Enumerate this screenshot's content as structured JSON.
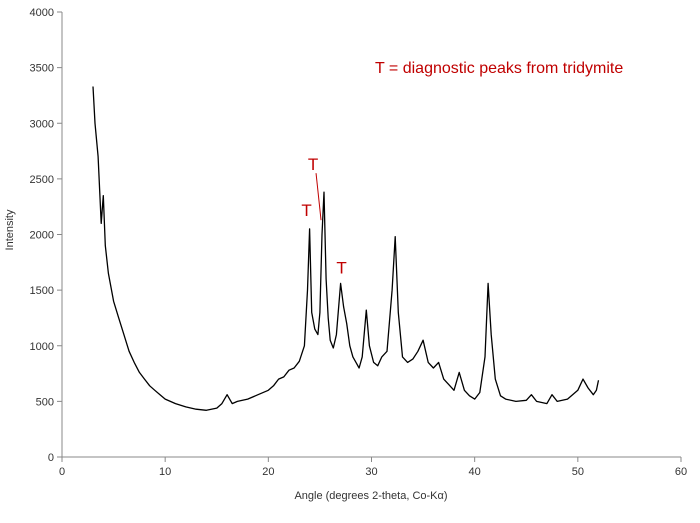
{
  "chart_data": {
    "type": "line",
    "title": "",
    "xlabel": "Angle (degrees 2-theta, Co-Kα)",
    "ylabel": "Intensity",
    "xlim": [
      0,
      60
    ],
    "ylim": [
      0,
      4000
    ],
    "x_ticks": [
      0,
      10,
      20,
      30,
      40,
      50,
      60
    ],
    "y_ticks": [
      0,
      500,
      1000,
      1500,
      2000,
      2500,
      3000,
      3500,
      4000
    ],
    "x_tick_labels": [
      "0",
      "10",
      "20",
      "30",
      "40",
      "50",
      "60"
    ],
    "y_tick_labels": [
      "0",
      "500",
      "1000",
      "1500",
      "2000",
      "2500",
      "3000",
      "3500",
      "4000"
    ],
    "grid": false,
    "line_color": "#000000",
    "annotation_color": "#c00000",
    "legend_note": "T = diagnostic peaks from tridymite",
    "peak_markers": [
      {
        "label": "T",
        "x": 24.0,
        "y": 2060
      },
      {
        "label": "T",
        "x": 25.4,
        "y": 2380
      },
      {
        "label": "T",
        "x": 27.0,
        "y": 1560
      }
    ],
    "series": [
      {
        "x": [
          3.0,
          3.2,
          3.5,
          3.8,
          4.0,
          4.2,
          4.5,
          5.0,
          5.5,
          6.0,
          6.5,
          7.0,
          7.5,
          8.0,
          8.5,
          9.0,
          9.5,
          10.0,
          11.0,
          12.0,
          13.0,
          14.0,
          15.0,
          15.5,
          16.0,
          16.5,
          17.0,
          18.0,
          19.0,
          20.0,
          20.5,
          21.0,
          21.5,
          22.0,
          22.5,
          23.0,
          23.5,
          23.8,
          24.0,
          24.2,
          24.5,
          24.8,
          25.0,
          25.2,
          25.4,
          25.6,
          25.8,
          26.0,
          26.3,
          26.6,
          27.0,
          27.3,
          27.6,
          27.9,
          28.2,
          28.5,
          28.8,
          29.1,
          29.5,
          29.8,
          30.2,
          30.6,
          31.0,
          31.5,
          32.0,
          32.3,
          32.6,
          33.0,
          33.5,
          34.0,
          34.5,
          35.0,
          35.5,
          36.0,
          36.5,
          37.0,
          37.5,
          38.0,
          38.5,
          39.0,
          39.5,
          40.0,
          40.5,
          41.0,
          41.3,
          41.6,
          42.0,
          42.5,
          43.0,
          44.0,
          45.0,
          45.5,
          46.0,
          47.0,
          47.5,
          48.0,
          49.0,
          50.0,
          50.5,
          51.0,
          51.5,
          51.8,
          52.0
        ],
        "y": [
          3330,
          3000,
          2700,
          2100,
          2350,
          1900,
          1650,
          1400,
          1250,
          1100,
          950,
          850,
          760,
          700,
          640,
          600,
          560,
          520,
          480,
          450,
          430,
          420,
          440,
          480,
          560,
          480,
          500,
          520,
          560,
          600,
          640,
          700,
          720,
          780,
          800,
          860,
          1000,
          1500,
          2050,
          1300,
          1150,
          1100,
          1300,
          2000,
          2380,
          1600,
          1250,
          1050,
          980,
          1100,
          1560,
          1350,
          1200,
          1000,
          900,
          850,
          800,
          900,
          1320,
          1000,
          850,
          820,
          900,
          950,
          1500,
          1980,
          1300,
          900,
          850,
          880,
          950,
          1050,
          850,
          800,
          850,
          700,
          650,
          600,
          760,
          600,
          550,
          520,
          580,
          900,
          1560,
          1100,
          700,
          550,
          520,
          500,
          510,
          560,
          500,
          480,
          560,
          500,
          520,
          600,
          700,
          620,
          560,
          600,
          690
        ]
      }
    ]
  }
}
